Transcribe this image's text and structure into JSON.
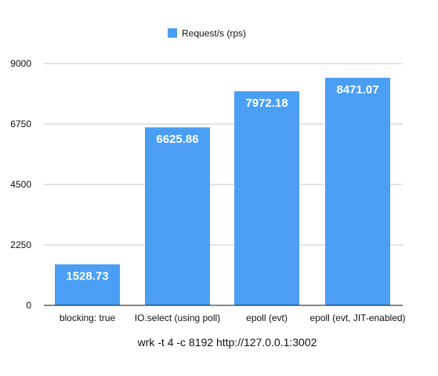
{
  "chart_data": {
    "type": "bar",
    "categories": [
      "blocking: true",
      "IO.select (using poll)",
      "epoll (evt)",
      "epoll (evt, JIT-enabled)"
    ],
    "series": [
      {
        "name": "Request/s (rps)",
        "values": [
          1528.73,
          6625.86,
          7972.18,
          8471.07
        ],
        "data_labels": [
          "1528.73",
          "6625.86",
          "7972.18",
          "8471.07"
        ],
        "color": "#4a9ff5"
      }
    ],
    "title": "",
    "xlabel": "wrk -t 4 -c 8192  http://127.0.0.1:3002",
    "ylabel": "",
    "ylim": [
      0,
      9000
    ],
    "yticks": [
      0,
      2250,
      4500,
      6750,
      9000
    ],
    "ytick_labels": [
      "0",
      "2250",
      "4500",
      "6750",
      "9000"
    ],
    "grid": true,
    "legend_position": "top-center"
  }
}
